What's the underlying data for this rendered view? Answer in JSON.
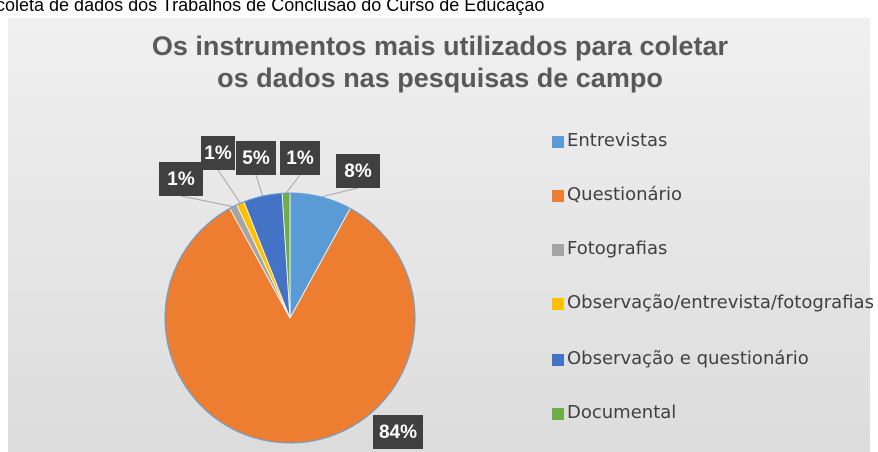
{
  "header": {
    "text": "coleta de dados dos Trabalhos de Conclusão do Curso de Educação"
  },
  "chart_data": {
    "type": "pie",
    "title": "Os instrumentos mais utilizados para coletar os dados nas pesquisas de campo",
    "categories": [
      "Entrevistas",
      "Questionário",
      "Fotografias",
      "Observação/entrevista/fotografias",
      "Observação e questionário",
      "Documental"
    ],
    "values": [
      8,
      84,
      1,
      1,
      5,
      1
    ],
    "value_labels": [
      "8%",
      "84%",
      "1%",
      "1%",
      "5%",
      "1%"
    ],
    "colors": [
      "#5b9bd5",
      "#ed7d31",
      "#a5a5a5",
      "#ffc000",
      "#4472c4",
      "#70ad47"
    ],
    "legend": "right"
  }
}
